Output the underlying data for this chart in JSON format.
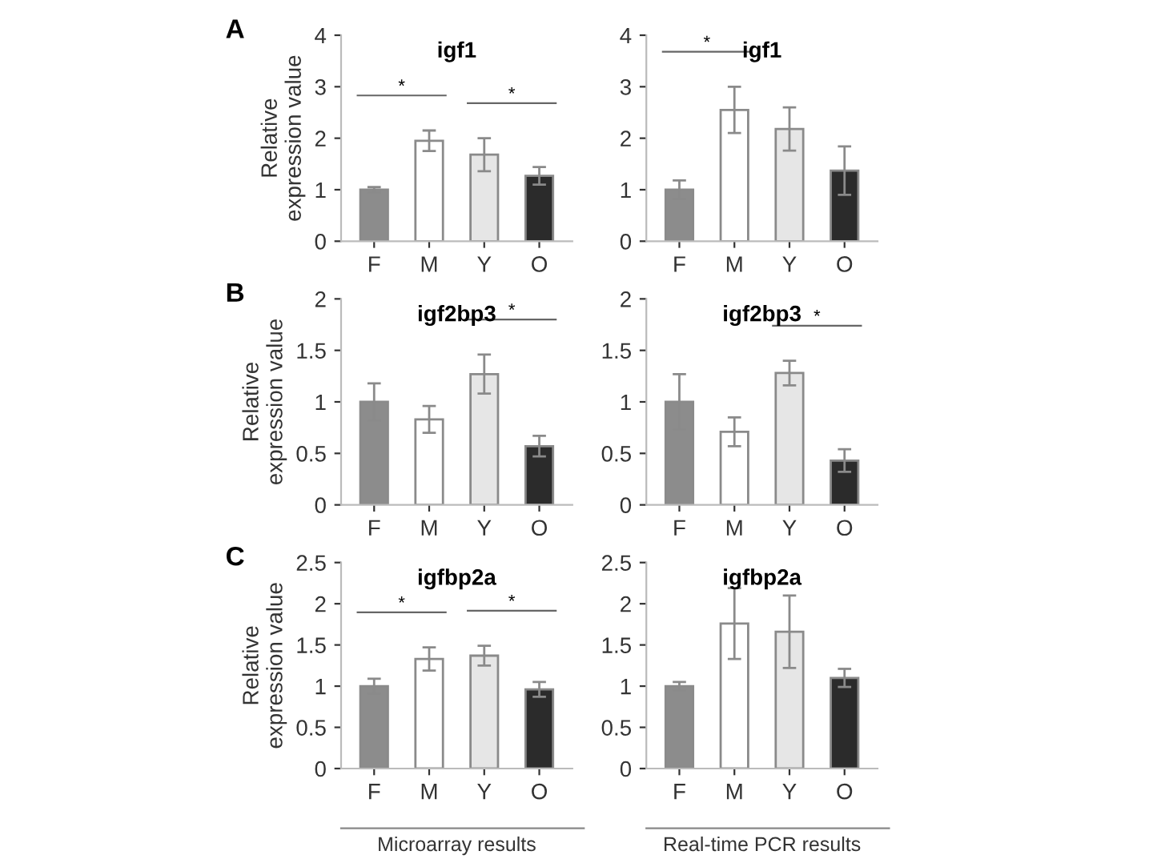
{
  "chart_data": [
    {
      "type": "bar",
      "title": "igf1",
      "ylabel": "Relative\nexpression value",
      "categories": [
        "F",
        "M",
        "Y",
        "O"
      ],
      "values": [
        1.0,
        1.95,
        1.68,
        1.27
      ],
      "errors": [
        0.05,
        0.2,
        0.32,
        0.17
      ],
      "colors": [
        "#8c8c8c",
        "#ffffff",
        "#e6e6e6",
        "#2b2b2b"
      ],
      "ylim": [
        0,
        4
      ],
      "yticks": [
        0,
        1,
        2,
        3,
        4
      ],
      "annotations": [
        "A",
        "*",
        "*"
      ]
    },
    {
      "type": "bar",
      "title": "igf2bp3",
      "ylabel": "Relative\nexpression value",
      "categories": [
        "F",
        "M",
        "Y",
        "O"
      ],
      "values": [
        1.0,
        0.83,
        1.27,
        0.57
      ],
      "errors": [
        0.18,
        0.13,
        0.19,
        0.1
      ],
      "colors": [
        "#8c8c8c",
        "#ffffff",
        "#e6e6e6",
        "#2b2b2b"
      ],
      "ylim": [
        0,
        2
      ],
      "yticks": [
        0,
        0.5,
        1,
        1.5,
        2
      ],
      "annotations": [
        "B",
        "*"
      ]
    },
    {
      "type": "bar",
      "title": "igfbp2a",
      "ylabel": "Relative\nexpression value",
      "categories": [
        "F",
        "M",
        "Y",
        "O"
      ],
      "values": [
        1.0,
        1.33,
        1.37,
        0.96
      ],
      "errors": [
        0.09,
        0.14,
        0.12,
        0.09
      ],
      "colors": [
        "#8c8c8c",
        "#ffffff",
        "#e6e6e6",
        "#2b2b2b"
      ],
      "ylim": [
        0,
        2.5
      ],
      "yticks": [
        0,
        0.5,
        1,
        1.5,
        2,
        2.5
      ],
      "annotations": [
        "C",
        "*",
        "*",
        "Microarray results"
      ]
    },
    {
      "type": "bar",
      "title": "igf1",
      "categories": [
        "F",
        "M",
        "Y",
        "O"
      ],
      "values": [
        1.0,
        2.55,
        2.18,
        1.37
      ],
      "errors": [
        0.18,
        0.45,
        0.42,
        0.47
      ],
      "colors": [
        "#8c8c8c",
        "#ffffff",
        "#e6e6e6",
        "#2b2b2b"
      ],
      "ylim": [
        0,
        4
      ],
      "yticks": [
        0,
        1,
        2,
        3,
        4
      ],
      "annotations": [
        "*"
      ]
    },
    {
      "type": "bar",
      "title": "igf2bp3",
      "categories": [
        "F",
        "M",
        "Y",
        "O"
      ],
      "values": [
        1.0,
        0.71,
        1.28,
        0.43
      ],
      "errors": [
        0.27,
        0.14,
        0.12,
        0.11
      ],
      "colors": [
        "#8c8c8c",
        "#ffffff",
        "#e6e6e6",
        "#2b2b2b"
      ],
      "ylim": [
        0,
        2
      ],
      "yticks": [
        0,
        0.5,
        1,
        1.5,
        2
      ],
      "annotations": [
        "*"
      ]
    },
    {
      "type": "bar",
      "title": "igfbp2a",
      "categories": [
        "F",
        "M",
        "Y",
        "O"
      ],
      "values": [
        1.0,
        1.76,
        1.66,
        1.1
      ],
      "errors": [
        0.05,
        0.43,
        0.44,
        0.11
      ],
      "colors": [
        "#8c8c8c",
        "#ffffff",
        "#e6e6e6",
        "#2b2b2b"
      ],
      "ylim": [
        0,
        2.5
      ],
      "yticks": [
        0,
        0.5,
        1,
        1.5,
        2,
        2.5
      ],
      "annotations": [
        "Real-time PCR results"
      ]
    }
  ]
}
